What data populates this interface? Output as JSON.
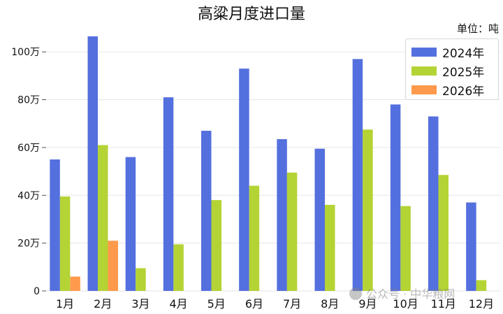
{
  "chart_data": {
    "type": "bar",
    "title": "高粱月度进口量",
    "unit_label": "单位：吨",
    "categories": [
      "1月",
      "2月",
      "3月",
      "4月",
      "5月",
      "6月",
      "7月",
      "8月",
      "9月",
      "10月",
      "11月",
      "12月"
    ],
    "series": [
      {
        "name": "2024年",
        "color": "#5470de",
        "values": [
          55,
          106.5,
          56,
          81,
          67,
          93,
          63.5,
          59.5,
          97,
          78,
          73,
          37
        ]
      },
      {
        "name": "2025年",
        "color": "#b4d334",
        "values": [
          39.5,
          61,
          9.5,
          19.5,
          38,
          44,
          49.5,
          36,
          67.5,
          35.5,
          48.5,
          4.5
        ]
      },
      {
        "name": "2026年",
        "color": "#ff9a4c",
        "values": [
          6,
          21,
          null,
          null,
          null,
          null,
          null,
          null,
          null,
          null,
          null,
          null
        ]
      }
    ],
    "yticks": [
      "0",
      "20万",
      "40万",
      "60万",
      "80万",
      "100万"
    ],
    "ytick_values": [
      0,
      20,
      40,
      60,
      80,
      100
    ],
    "ylim": [
      0,
      110
    ],
    "grid": true,
    "legend_position": "top-right"
  },
  "watermark": {
    "text": "公众号 · 中华粮网",
    "icon": "wechat-icon"
  }
}
